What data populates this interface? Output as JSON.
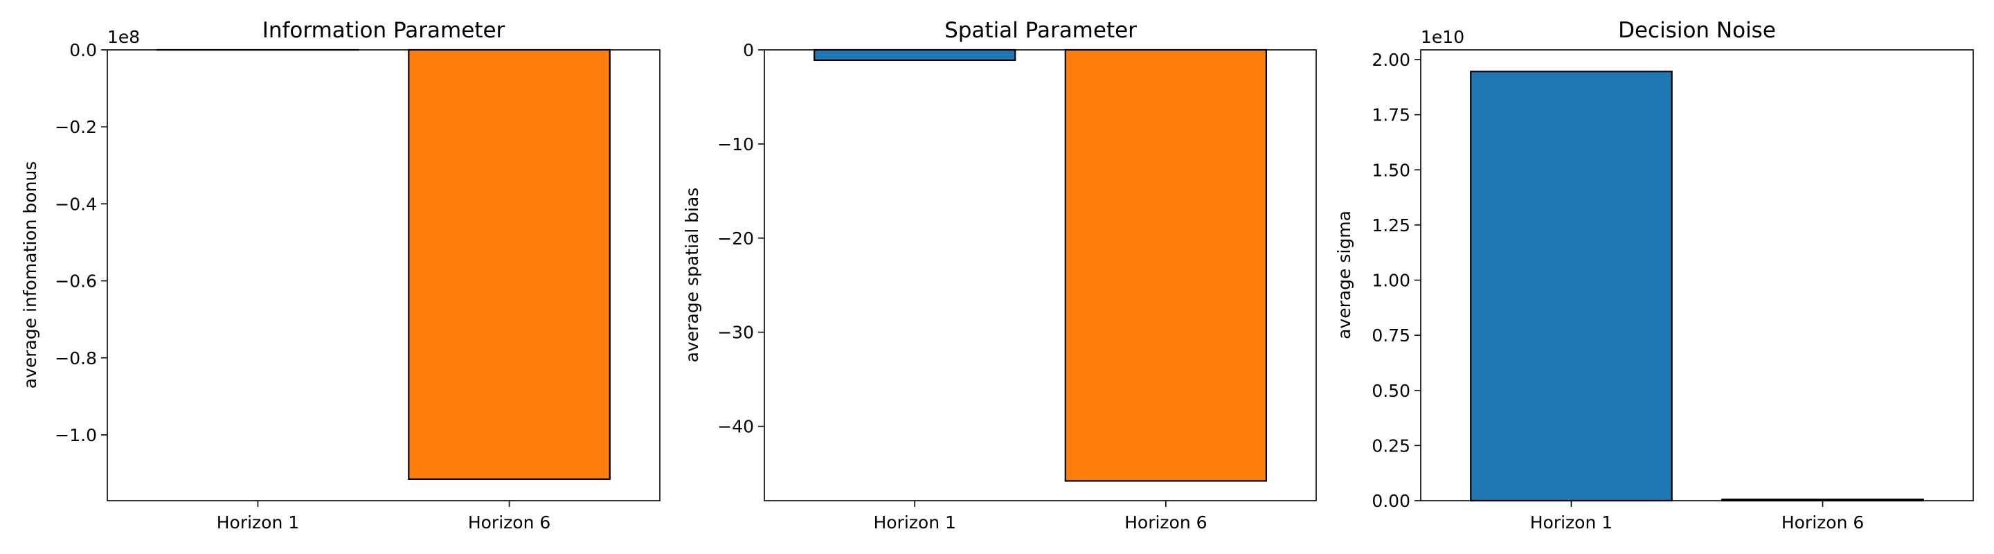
{
  "chart_data": [
    {
      "type": "bar",
      "title": "Information Parameter",
      "xlabel": "",
      "ylabel": "average infomation bonus",
      "categories": [
        "Horizon 1",
        "Horizon 6"
      ],
      "values": [
        0,
        -111500000
      ],
      "colors": [
        "#1f77b4",
        "#ff7f0e"
      ],
      "ylim": [
        -117100000,
        0
      ],
      "yticks": [
        0,
        -20000000,
        -40000000,
        -60000000,
        -80000000,
        -100000000
      ],
      "ytick_labels": [
        "0.0",
        "−0.2",
        "−0.4",
        "−0.6",
        "−0.8",
        "−1.0"
      ],
      "offset_label": "1e8",
      "grid": false
    },
    {
      "type": "bar",
      "title": "Spatial Parameter",
      "xlabel": "",
      "ylabel": "average spatial bias",
      "categories": [
        "Horizon 1",
        "Horizon 6"
      ],
      "values": [
        -1.1,
        -45.8
      ],
      "colors": [
        "#1f77b4",
        "#ff7f0e"
      ],
      "ylim": [
        -47.9,
        0
      ],
      "yticks": [
        0,
        -10,
        -20,
        -30,
        -40
      ],
      "ytick_labels": [
        "0",
        "−10",
        "−20",
        "−30",
        "−40"
      ],
      "offset_label": "",
      "grid": false
    },
    {
      "type": "bar",
      "title": "Decision Noise",
      "xlabel": "",
      "ylabel": "average sigma",
      "categories": [
        "Horizon 1",
        "Horizon 6"
      ],
      "values": [
        19460000000,
        60000000
      ],
      "colors": [
        "#1f77b4",
        "#ff7f0e"
      ],
      "ylim": [
        0,
        20440000000
      ],
      "yticks": [
        0,
        2500000000,
        5000000000,
        7500000000,
        10000000000,
        12500000000,
        15000000000,
        17500000000,
        20000000000
      ],
      "ytick_labels": [
        "0.00",
        "0.25",
        "0.50",
        "0.75",
        "1.00",
        "1.25",
        "1.50",
        "1.75",
        "2.00"
      ],
      "offset_label": "1e10",
      "grid": false
    }
  ]
}
